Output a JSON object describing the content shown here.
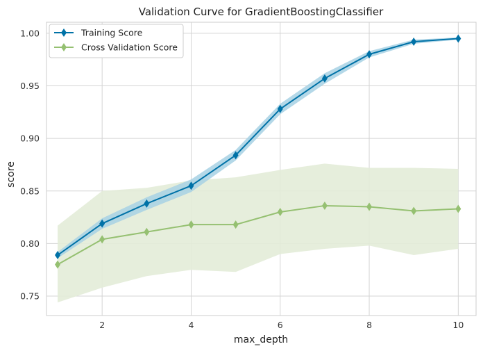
{
  "chart_data": {
    "type": "line",
    "title": "Validation Curve for GradientBoostingClassifier",
    "xlabel": "max_depth",
    "ylabel": "score",
    "xlim": [
      0.75,
      10.4
    ],
    "ylim": [
      0.7315,
      1.0105
    ],
    "xticks": [
      2,
      4,
      6,
      8,
      10
    ],
    "yticks": [
      0.75,
      0.8,
      0.85,
      0.9,
      0.95,
      1.0
    ],
    "ytick_labels": [
      "0.75",
      "0.80",
      "0.85",
      "0.90",
      "0.95",
      "1.00"
    ],
    "grid": true,
    "legend_position": "top-left",
    "x": [
      1,
      2,
      3,
      4,
      5,
      6,
      7,
      8,
      9,
      10
    ],
    "series": [
      {
        "name": "Training Score",
        "color": "#0072a7",
        "band_color": "#a7d1e4",
        "values": [
          0.789,
          0.819,
          0.838,
          0.855,
          0.884,
          0.928,
          0.957,
          0.98,
          0.992,
          0.995
        ],
        "lower": [
          0.786,
          0.814,
          0.832,
          0.849,
          0.879,
          0.923,
          0.952,
          0.977,
          0.99,
          0.994
        ],
        "upper": [
          0.792,
          0.824,
          0.844,
          0.861,
          0.889,
          0.933,
          0.962,
          0.983,
          0.994,
          0.996
        ]
      },
      {
        "name": "Cross Validation Score",
        "color": "#95c071",
        "band_color": "#e3ecd8",
        "values": [
          0.78,
          0.804,
          0.811,
          0.818,
          0.818,
          0.83,
          0.836,
          0.835,
          0.831,
          0.833
        ],
        "lower": [
          0.744,
          0.758,
          0.769,
          0.775,
          0.773,
          0.79,
          0.795,
          0.798,
          0.789,
          0.795
        ],
        "upper": [
          0.817,
          0.85,
          0.853,
          0.86,
          0.863,
          0.87,
          0.876,
          0.872,
          0.872,
          0.871
        ]
      }
    ]
  }
}
